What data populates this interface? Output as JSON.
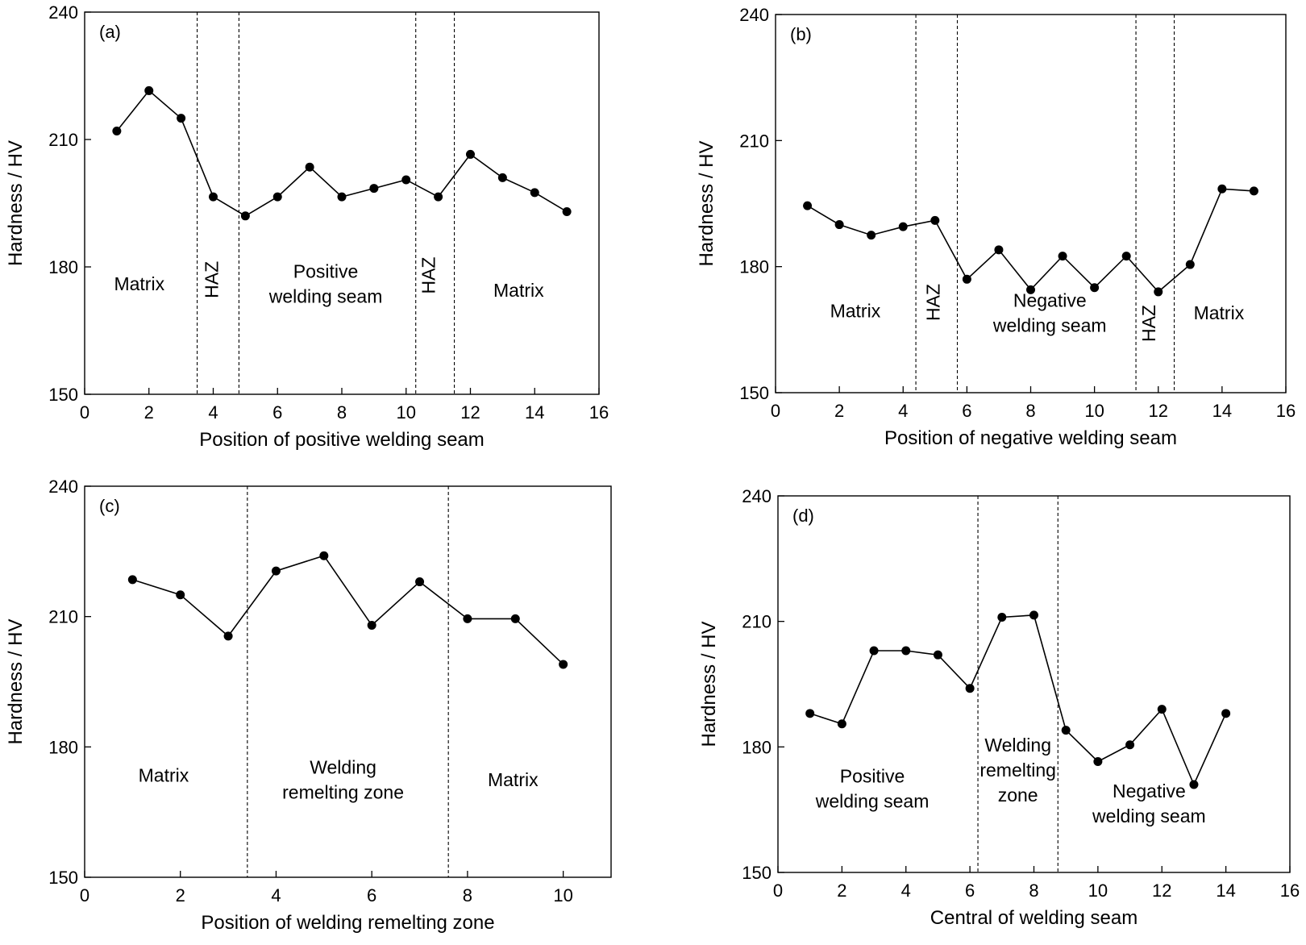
{
  "colors": {
    "line": "#000000",
    "marker": "#000000",
    "background": "#ffffff"
  },
  "chart_data": [
    {
      "type": "line",
      "panel_label": "(a)",
      "xlabel": "Position of positive welding seam",
      "ylabel": "Hardness / HV",
      "xlim": [
        0,
        16
      ],
      "ylim": [
        150,
        240
      ],
      "xticks": [
        "0",
        "2",
        "4",
        "6",
        "8",
        "10",
        "12",
        "14",
        "16"
      ],
      "yticks": [
        "150",
        "180",
        "210",
        "240"
      ],
      "series": [
        {
          "x": [
            1,
            2,
            3,
            4,
            5,
            6,
            7,
            8,
            9,
            10,
            11,
            12,
            13,
            14,
            15
          ],
          "values": [
            212,
            221.5,
            215,
            196.5,
            192,
            196.5,
            203.5,
            196.5,
            198.5,
            200.5,
            196.5,
            206.5,
            201,
            197.5,
            193
          ]
        }
      ],
      "dividers": [
        3.5,
        4.8,
        10.3,
        11.5
      ],
      "regions": [
        {
          "lines": [
            "Matrix"
          ],
          "x": 1.7,
          "y": 176,
          "rotate": false
        },
        {
          "lines": [
            "HAZ"
          ],
          "x": 4.15,
          "y": 177,
          "rotate": true
        },
        {
          "lines": [
            "Positive",
            "welding seam"
          ],
          "x": 7.5,
          "y": 176,
          "rotate": false
        },
        {
          "lines": [
            "HAZ"
          ],
          "x": 10.9,
          "y": 178,
          "rotate": true
        },
        {
          "lines": [
            "Matrix"
          ],
          "x": 13.5,
          "y": 174.5,
          "rotate": false
        }
      ],
      "grid": false,
      "legend": "none"
    },
    {
      "type": "line",
      "panel_label": "(b)",
      "xlabel": "Position of negative welding seam",
      "ylabel": "Hardness / HV",
      "xlim": [
        0,
        16
      ],
      "ylim": [
        150,
        240
      ],
      "xticks": [
        "0",
        "2",
        "4",
        "6",
        "8",
        "10",
        "12",
        "14",
        "16"
      ],
      "yticks": [
        "150",
        "180",
        "210",
        "240"
      ],
      "series": [
        {
          "x": [
            1,
            2,
            3,
            4,
            5,
            6,
            7,
            8,
            9,
            10,
            11,
            12,
            13,
            14,
            15
          ],
          "values": [
            194.5,
            190,
            187.5,
            189.5,
            191,
            177,
            184,
            174.5,
            182.5,
            175,
            182.5,
            174,
            180.5,
            198.5,
            198
          ]
        }
      ],
      "dividers": [
        4.4,
        5.7,
        11.3,
        12.5
      ],
      "regions": [
        {
          "lines": [
            "Matrix"
          ],
          "x": 2.5,
          "y": 169.5,
          "rotate": false
        },
        {
          "lines": [
            "HAZ"
          ],
          "x": 5.15,
          "y": 171.5,
          "rotate": true
        },
        {
          "lines": [
            "Negative",
            "welding seam"
          ],
          "x": 8.6,
          "y": 169,
          "rotate": false
        },
        {
          "lines": [
            "HAZ"
          ],
          "x": 11.9,
          "y": 166.5,
          "rotate": true
        },
        {
          "lines": [
            "Matrix"
          ],
          "x": 13.9,
          "y": 169,
          "rotate": false
        }
      ],
      "grid": false,
      "legend": "none"
    },
    {
      "type": "line",
      "panel_label": "(c)",
      "xlabel": "Position of welding remelting zone",
      "ylabel": "Hardness / HV",
      "xlim": [
        0,
        11
      ],
      "ylim": [
        150,
        240
      ],
      "xticks": [
        "0",
        "2",
        "4",
        "6",
        "8",
        "10"
      ],
      "yticks": [
        "150",
        "180",
        "210",
        "240"
      ],
      "series": [
        {
          "x": [
            1,
            2,
            3,
            4,
            5,
            6,
            7,
            8,
            9,
            10
          ],
          "values": [
            218.5,
            215,
            205.5,
            220.5,
            224,
            208,
            218,
            209.5,
            209.5,
            199
          ]
        }
      ],
      "dividers": [
        3.4,
        7.6
      ],
      "regions": [
        {
          "lines": [
            "Matrix"
          ],
          "x": 1.65,
          "y": 173.5,
          "rotate": false
        },
        {
          "lines": [
            "Welding",
            "remelting zone"
          ],
          "x": 5.4,
          "y": 172.5,
          "rotate": false
        },
        {
          "lines": [
            "Matrix"
          ],
          "x": 8.95,
          "y": 172.5,
          "rotate": false
        }
      ],
      "grid": false,
      "legend": "none"
    },
    {
      "type": "line",
      "panel_label": "(d)",
      "xlabel": "Central of welding seam",
      "ylabel": "Hardness / HV",
      "xlim": [
        0,
        16
      ],
      "ylim": [
        150,
        240
      ],
      "xticks": [
        "0",
        "2",
        "4",
        "6",
        "8",
        "10",
        "12",
        "14",
        "16"
      ],
      "yticks": [
        "150",
        "180",
        "210",
        "240"
      ],
      "series": [
        {
          "x": [
            1,
            2,
            3,
            4,
            5,
            6,
            7,
            8,
            9,
            10,
            11,
            12,
            13,
            14
          ],
          "values": [
            188,
            185.5,
            203,
            203,
            202,
            194,
            211,
            211.5,
            184,
            176.5,
            180.5,
            189,
            171,
            188
          ]
        }
      ],
      "dividers": [
        6.25,
        8.75
      ],
      "regions": [
        {
          "lines": [
            "Positive",
            "welding seam"
          ],
          "x": 2.95,
          "y": 170,
          "rotate": false
        },
        {
          "lines": [
            "Welding",
            "remelting",
            "zone"
          ],
          "x": 7.5,
          "y": 174.5,
          "rotate": false
        },
        {
          "lines": [
            "Negative",
            "welding seam"
          ],
          "x": 11.6,
          "y": 166.5,
          "rotate": false
        }
      ],
      "grid": false,
      "legend": "none"
    }
  ]
}
